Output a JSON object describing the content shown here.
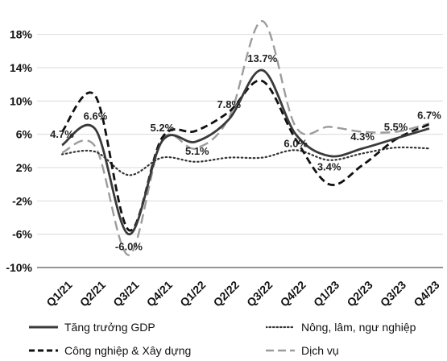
{
  "chart_data": {
    "type": "line",
    "categories": [
      "Q1/21",
      "Q2/21",
      "Q3/21",
      "Q4/21",
      "Q1/22",
      "Q2/22",
      "Q3/22",
      "Q4/22",
      "Q1/23",
      "Q2/23",
      "Q3/23",
      "Q4/23"
    ],
    "ylim": [
      -10,
      20
    ],
    "yticks": [
      -10,
      -6,
      -2,
      2,
      6,
      10,
      14,
      18
    ],
    "ytick_labels": [
      "-10%",
      "-6%",
      "-2%",
      "2%",
      "6%",
      "10%",
      "14%",
      "18%"
    ],
    "grid": "horizontal",
    "legend_position": "bottom",
    "series": [
      {
        "name": "Tăng trưởng GDP",
        "style": "solid",
        "color": "#3a3a3a",
        "values": [
          4.7,
          6.6,
          -6.0,
          5.2,
          5.1,
          7.8,
          13.7,
          6.0,
          3.4,
          4.3,
          5.5,
          6.7
        ]
      },
      {
        "name": "Nông, lâm, ngư nghiệp",
        "style": "dotted",
        "color": "#333333",
        "values": [
          3.6,
          3.9,
          1.1,
          3.2,
          2.7,
          3.2,
          3.2,
          4.1,
          2.9,
          3.7,
          4.4,
          4.3
        ]
      },
      {
        "name": "Công nghiệp & Xây dựng",
        "style": "dash",
        "color": "#111111",
        "values": [
          6.3,
          10.6,
          -5.5,
          5.6,
          6.4,
          8.7,
          12.4,
          5.4,
          0.0,
          2.3,
          5.4,
          7.2
        ]
      },
      {
        "name": "Dịch vụ",
        "style": "longdash",
        "color": "#9c9c9c",
        "values": [
          3.8,
          4.5,
          -8.5,
          5.3,
          4.3,
          8.0,
          19.6,
          6.9,
          6.9,
          6.3,
          6.3,
          7.3
        ]
      }
    ],
    "data_labels": [
      {
        "category_index": 0,
        "value": 4.7,
        "text": "4.7%"
      },
      {
        "category_index": 1,
        "value": 6.6,
        "text": "6.6%"
      },
      {
        "category_index": 2,
        "value": -6.0,
        "text": "-6.0%"
      },
      {
        "category_index": 3,
        "value": 5.2,
        "text": "5.2%"
      },
      {
        "category_index": 4,
        "value": 5.1,
        "text": "5.1%"
      },
      {
        "category_index": 5,
        "value": 7.8,
        "text": "7.8%"
      },
      {
        "category_index": 6,
        "value": 13.7,
        "text": "13.7%"
      },
      {
        "category_index": 7,
        "value": 6.0,
        "text": "6.0%"
      },
      {
        "category_index": 8,
        "value": 3.4,
        "text": "3.4%"
      },
      {
        "category_index": 9,
        "value": 4.3,
        "text": "4.3%"
      },
      {
        "category_index": 10,
        "value": 5.5,
        "text": "5.5%"
      },
      {
        "category_index": 11,
        "value": 6.7,
        "text": "6.7%"
      }
    ]
  },
  "legend": {
    "gdp": "Tăng trưởng GDP",
    "agri": "Nông, lâm, ngư nghiệp",
    "industry": "Công nghiệp & Xây dựng",
    "services": "Dịch vụ"
  }
}
